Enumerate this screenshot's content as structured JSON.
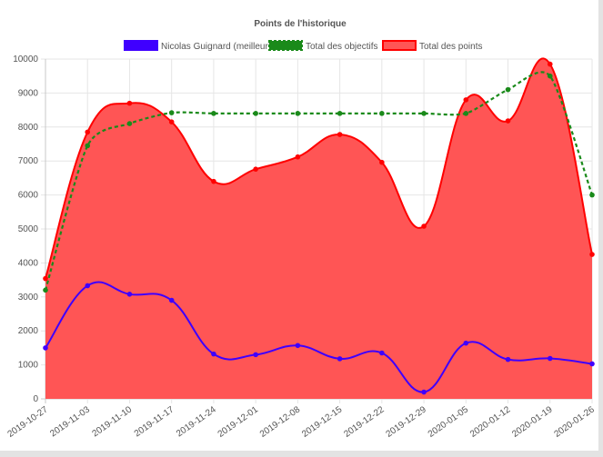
{
  "chart_data": {
    "type": "line",
    "title": "Points de l'historique",
    "xlabel": "",
    "ylabel": "",
    "categories": [
      "2019-10-27",
      "2019-11-03",
      "2019-11-10",
      "2019-11-17",
      "2019-11-24",
      "2019-12-01",
      "2019-12-08",
      "2019-12-15",
      "2019-12-22",
      "2019-12-29",
      "2020-01-05",
      "2020-01-12",
      "2020-01-19",
      "2020-01-26"
    ],
    "ylim": [
      0,
      10000
    ],
    "yticks": [
      "0",
      "1000",
      "2000",
      "3000",
      "4000",
      "5000",
      "6000",
      "7000",
      "8000",
      "9000",
      "10000"
    ],
    "grid": true,
    "legend_position": "top",
    "series": [
      {
        "name": "Nicolas Guignard (meilleur)",
        "color": "#3f00ff",
        "style": "solid-smooth",
        "values": [
          1500,
          3330,
          3080,
          2900,
          1320,
          1300,
          1570,
          1180,
          1350,
          200,
          1640,
          1160,
          1190,
          1030
        ]
      },
      {
        "name": "Total des objectifs",
        "color": "#1a8a1a",
        "style": "dashed",
        "values": [
          3200,
          7450,
          8100,
          8420,
          8400,
          8400,
          8400,
          8400,
          8400,
          8400,
          8400,
          9100,
          9500,
          6000
        ]
      },
      {
        "name": "Total des points",
        "color": "#ff0000",
        "fill": "#ff5555",
        "style": "filled-smooth",
        "values": [
          3540,
          7850,
          8700,
          8150,
          6400,
          6760,
          7120,
          7780,
          6960,
          5080,
          8800,
          8180,
          9850,
          4250
        ]
      }
    ]
  }
}
